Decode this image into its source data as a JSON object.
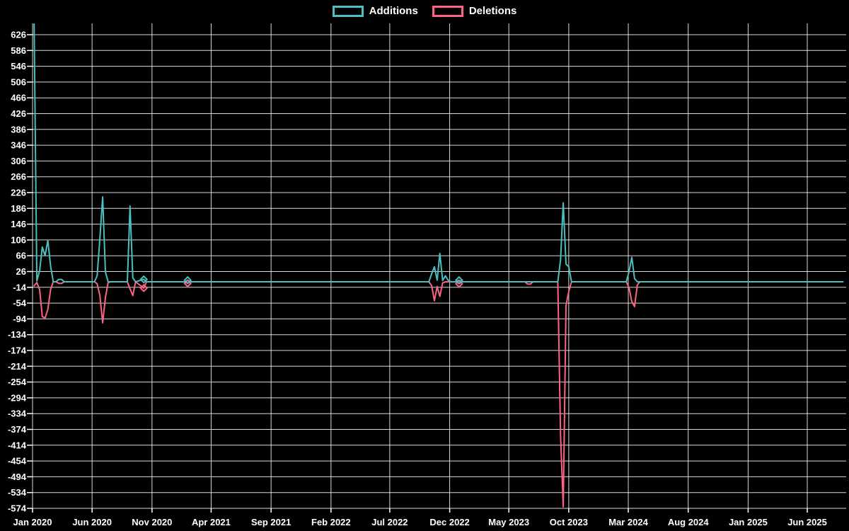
{
  "chart_data": {
    "type": "line",
    "title": "",
    "background_color": "#000000",
    "grid": true,
    "grid_color": "rgba(255,255,255,0.85)",
    "text_color": "#ffffff",
    "legend_position": "top",
    "x_axis": {
      "labels": [
        "Jan 2020",
        "Jun 2020",
        "Nov 2020",
        "Apr 2021",
        "Sep 2021",
        "Feb 2022",
        "Jul 2022",
        "Dec 2022",
        "May 2023",
        "Oct 2023",
        "Mar 2024",
        "Aug 2024",
        "Jan 2025",
        "Jun 2025"
      ],
      "range_start": "2020-01-01",
      "range_end": "2025-09-01"
    },
    "y_axis": {
      "min": -574,
      "max": 626,
      "step": 40,
      "ticks": [
        626,
        586,
        546,
        506,
        466,
        426,
        386,
        346,
        306,
        266,
        226,
        186,
        146,
        106,
        66,
        26,
        -14,
        -54,
        -94,
        -134,
        -174,
        -214,
        -254,
        -294,
        -334,
        -374,
        -414,
        -454,
        -494,
        -534,
        -574
      ]
    },
    "series": [
      {
        "name": "Additions",
        "color": "#4bc0c0",
        "marker_shape": "diamond",
        "points": [
          [
            "2020-01-05",
            653
          ],
          [
            "2020-01-12",
            2
          ],
          [
            "2020-01-19",
            28
          ],
          [
            "2020-01-26",
            88
          ],
          [
            "2020-02-02",
            66
          ],
          [
            "2020-02-09",
            105
          ],
          [
            "2020-02-16",
            40
          ],
          [
            "2020-02-23",
            0
          ],
          [
            "2020-03-01",
            0
          ],
          [
            "2020-03-08",
            6
          ],
          [
            "2020-03-15",
            6
          ],
          [
            "2020-03-22",
            0
          ],
          [
            "2020-06-07",
            0
          ],
          [
            "2020-06-14",
            15
          ],
          [
            "2020-06-21",
            110
          ],
          [
            "2020-06-28",
            215
          ],
          [
            "2020-07-05",
            25
          ],
          [
            "2020-07-12",
            0
          ],
          [
            "2020-08-30",
            0
          ],
          [
            "2020-09-06",
            192
          ],
          [
            "2020-09-13",
            10
          ],
          [
            "2020-09-20",
            0
          ],
          [
            "2020-10-11",
            6,
            true
          ],
          [
            "2020-10-18",
            0
          ],
          [
            "2021-01-24",
            0
          ],
          [
            "2021-01-31",
            4,
            true
          ],
          [
            "2021-02-07",
            0
          ],
          [
            "2022-10-09",
            0
          ],
          [
            "2022-10-16",
            20
          ],
          [
            "2022-10-23",
            38
          ],
          [
            "2022-10-30",
            4
          ],
          [
            "2022-11-06",
            72
          ],
          [
            "2022-11-13",
            3
          ],
          [
            "2022-11-20",
            15
          ],
          [
            "2022-11-27",
            4
          ],
          [
            "2022-12-04",
            0
          ],
          [
            "2022-12-18",
            0
          ],
          [
            "2022-12-25",
            4,
            true
          ],
          [
            "2023-01-01",
            0
          ],
          [
            "2023-09-03",
            0
          ],
          [
            "2023-09-10",
            55
          ],
          [
            "2023-09-17",
            200
          ],
          [
            "2023-09-24",
            45
          ],
          [
            "2023-10-01",
            38
          ],
          [
            "2023-10-08",
            0
          ],
          [
            "2024-02-25",
            0
          ],
          [
            "2024-03-03",
            26
          ],
          [
            "2024-03-10",
            62
          ],
          [
            "2024-03-17",
            8
          ],
          [
            "2024-03-24",
            0
          ],
          [
            "2025-08-31",
            0
          ]
        ]
      },
      {
        "name": "Deletions",
        "color": "#ff6384",
        "marker_shape": "diamond",
        "points": [
          [
            "2020-01-05",
            -10
          ],
          [
            "2020-01-12",
            -2
          ],
          [
            "2020-01-19",
            -20
          ],
          [
            "2020-01-26",
            -88
          ],
          [
            "2020-02-02",
            -92
          ],
          [
            "2020-02-09",
            -70
          ],
          [
            "2020-02-16",
            -20
          ],
          [
            "2020-02-23",
            0
          ],
          [
            "2020-03-01",
            0
          ],
          [
            "2020-03-08",
            -4
          ],
          [
            "2020-03-15",
            -4
          ],
          [
            "2020-03-22",
            0
          ],
          [
            "2020-06-07",
            0
          ],
          [
            "2020-06-14",
            -5
          ],
          [
            "2020-06-21",
            -35
          ],
          [
            "2020-06-28",
            -104
          ],
          [
            "2020-07-05",
            -40
          ],
          [
            "2020-07-12",
            -2
          ],
          [
            "2020-07-19",
            0
          ],
          [
            "2020-08-30",
            0
          ],
          [
            "2020-09-06",
            -18
          ],
          [
            "2020-09-13",
            -35
          ],
          [
            "2020-09-20",
            0
          ],
          [
            "2020-10-11",
            -16,
            true
          ],
          [
            "2020-10-18",
            0
          ],
          [
            "2021-01-24",
            0
          ],
          [
            "2021-01-31",
            -4,
            true
          ],
          [
            "2021-02-07",
            0
          ],
          [
            "2022-10-09",
            0
          ],
          [
            "2022-10-16",
            -10
          ],
          [
            "2022-10-23",
            -48
          ],
          [
            "2022-10-30",
            -12
          ],
          [
            "2022-11-06",
            -37
          ],
          [
            "2022-11-13",
            -3
          ],
          [
            "2022-11-20",
            0
          ],
          [
            "2022-12-18",
            0
          ],
          [
            "2022-12-25",
            -5,
            true
          ],
          [
            "2023-01-01",
            0
          ],
          [
            "2023-06-11",
            0
          ],
          [
            "2023-06-18",
            -6
          ],
          [
            "2023-06-25",
            -6
          ],
          [
            "2023-07-02",
            0
          ],
          [
            "2023-09-03",
            0
          ],
          [
            "2023-09-10",
            -390
          ],
          [
            "2023-09-17",
            -570
          ],
          [
            "2023-09-24",
            -60
          ],
          [
            "2023-10-01",
            -25
          ],
          [
            "2023-10-08",
            0
          ],
          [
            "2024-02-25",
            0
          ],
          [
            "2024-03-03",
            -15
          ],
          [
            "2024-03-10",
            -50
          ],
          [
            "2024-03-17",
            -63
          ],
          [
            "2024-03-24",
            -8
          ],
          [
            "2024-03-31",
            0
          ],
          [
            "2025-08-31",
            0
          ]
        ]
      }
    ]
  }
}
